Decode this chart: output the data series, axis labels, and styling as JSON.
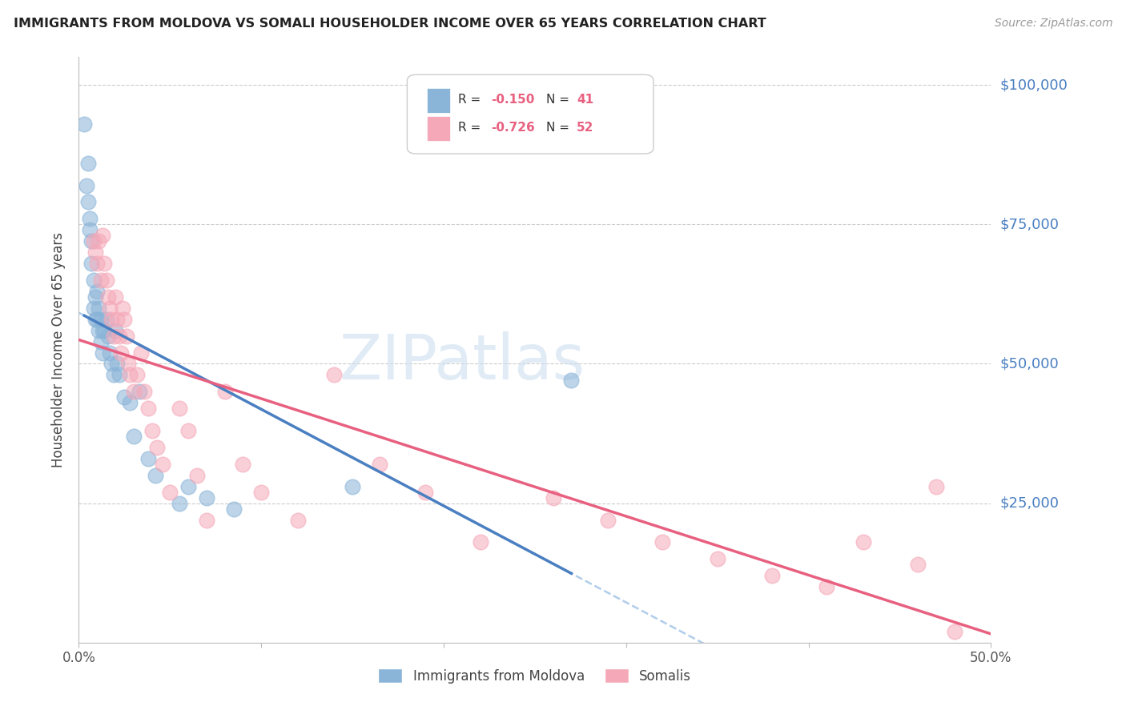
{
  "title": "IMMIGRANTS FROM MOLDOVA VS SOMALI HOUSEHOLDER INCOME OVER 65 YEARS CORRELATION CHART",
  "source": "Source: ZipAtlas.com",
  "ylabel": "Householder Income Over 65 years",
  "watermark": "ZIPatlas",
  "moldova_color": "#8ab4d8",
  "somali_color": "#f5a8b8",
  "moldova_line_color": "#4a7fc1",
  "somali_line_color": "#e86080",
  "dashed_line_color": "#a8c8e8",
  "xlim": [
    0.0,
    0.5
  ],
  "ylim": [
    0,
    105000
  ],
  "moldova_R": -0.15,
  "moldova_N": 41,
  "somali_R": -0.726,
  "somali_N": 52,
  "moldova_scatter_x": [
    0.003,
    0.004,
    0.005,
    0.005,
    0.006,
    0.006,
    0.007,
    0.007,
    0.008,
    0.008,
    0.009,
    0.009,
    0.01,
    0.01,
    0.011,
    0.011,
    0.012,
    0.012,
    0.013,
    0.013,
    0.014,
    0.015,
    0.016,
    0.017,
    0.018,
    0.019,
    0.02,
    0.021,
    0.022,
    0.025,
    0.028,
    0.03,
    0.033,
    0.038,
    0.042,
    0.055,
    0.06,
    0.07,
    0.085,
    0.15,
    0.27
  ],
  "moldova_scatter_y": [
    93000,
    82000,
    79000,
    86000,
    76000,
    74000,
    72000,
    68000,
    65000,
    60000,
    62000,
    58000,
    63000,
    58000,
    60000,
    56000,
    58000,
    54000,
    56000,
    52000,
    56000,
    58000,
    55000,
    52000,
    50000,
    48000,
    56000,
    50000,
    48000,
    44000,
    43000,
    37000,
    45000,
    33000,
    30000,
    25000,
    28000,
    26000,
    24000,
    28000,
    47000
  ],
  "somali_scatter_x": [
    0.008,
    0.009,
    0.01,
    0.011,
    0.012,
    0.013,
    0.014,
    0.015,
    0.016,
    0.017,
    0.018,
    0.019,
    0.02,
    0.021,
    0.022,
    0.023,
    0.024,
    0.025,
    0.026,
    0.027,
    0.028,
    0.03,
    0.032,
    0.034,
    0.036,
    0.038,
    0.04,
    0.043,
    0.046,
    0.05,
    0.055,
    0.06,
    0.065,
    0.07,
    0.08,
    0.09,
    0.1,
    0.12,
    0.14,
    0.165,
    0.19,
    0.22,
    0.26,
    0.29,
    0.32,
    0.35,
    0.38,
    0.41,
    0.43,
    0.46,
    0.47,
    0.48
  ],
  "somali_scatter_y": [
    72000,
    70000,
    68000,
    72000,
    65000,
    73000,
    68000,
    65000,
    62000,
    60000,
    58000,
    55000,
    62000,
    58000,
    55000,
    52000,
    60000,
    58000,
    55000,
    50000,
    48000,
    45000,
    48000,
    52000,
    45000,
    42000,
    38000,
    35000,
    32000,
    27000,
    42000,
    38000,
    30000,
    22000,
    45000,
    32000,
    27000,
    22000,
    48000,
    32000,
    27000,
    18000,
    26000,
    22000,
    18000,
    15000,
    12000,
    10000,
    18000,
    14000,
    28000,
    2000
  ],
  "legend_label_moldova": "Immigrants from Moldova",
  "legend_label_somali": "Somalis"
}
